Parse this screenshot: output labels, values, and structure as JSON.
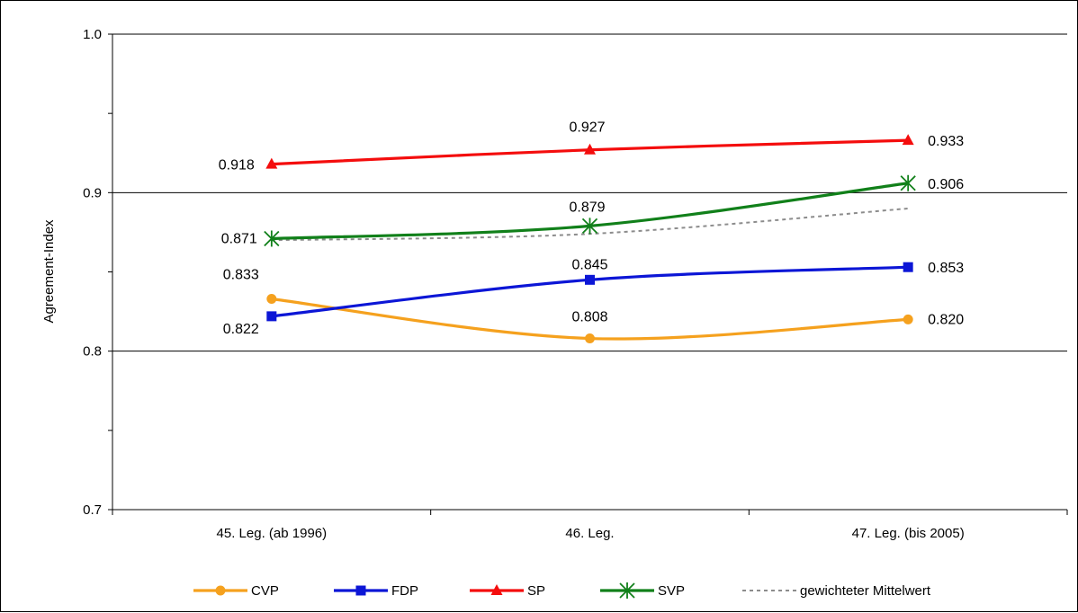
{
  "chart_data": {
    "type": "line",
    "title": "",
    "xlabel": "",
    "ylabel": "Agreement-Index",
    "categories": [
      "45. Leg. (ab 1996)",
      "46. Leg.",
      "47. Leg. (bis 2005)"
    ],
    "ylim": [
      0.7,
      1.0
    ],
    "yticks": [
      "0.7",
      "0.8",
      "0.9",
      "1.0"
    ],
    "grid": "horizontal major gridlines",
    "legend_position": "bottom",
    "series": [
      {
        "name": "CVP",
        "values": [
          0.833,
          0.808,
          0.82
        ],
        "labels": [
          "0.833",
          "0.808",
          "0.820"
        ],
        "color": "#f5a11e",
        "marker": "circle",
        "dash": false
      },
      {
        "name": "FDP",
        "values": [
          0.822,
          0.845,
          0.853
        ],
        "labels": [
          "0.822",
          "0.845",
          "0.853"
        ],
        "color": "#0c16d6",
        "marker": "square",
        "dash": false
      },
      {
        "name": "SP",
        "values": [
          0.918,
          0.927,
          0.933
        ],
        "labels": [
          "0.918",
          "0.927",
          "0.933"
        ],
        "color": "#f40d0d",
        "marker": "triangle",
        "dash": false
      },
      {
        "name": "SVP",
        "values": [
          0.871,
          0.879,
          0.906
        ],
        "labels": [
          "0.871",
          "0.879",
          "0.906"
        ],
        "color": "#11801a",
        "marker": "star",
        "dash": false
      },
      {
        "name": "gewichteter Mittelwert",
        "values": [
          0.87,
          0.874,
          0.89
        ],
        "labels": [],
        "color": "#8c8c8c",
        "marker": "none",
        "dash": true
      }
    ]
  }
}
